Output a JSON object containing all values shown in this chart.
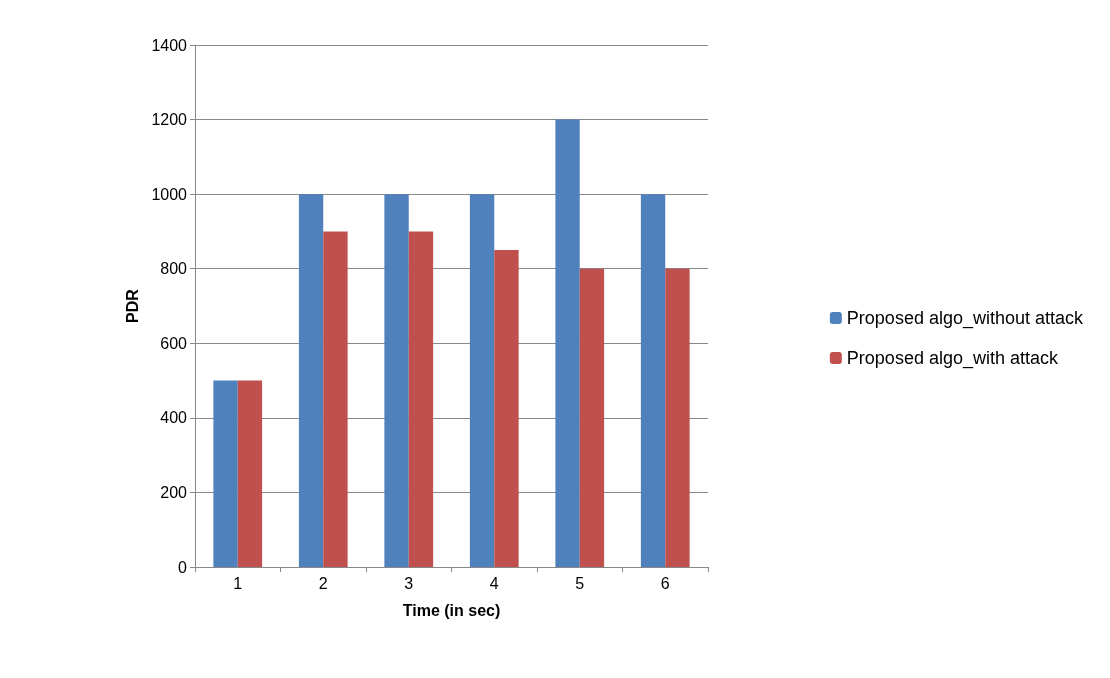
{
  "chart_data": {
    "type": "bar",
    "xlabel": "Time (in sec)",
    "ylabel": "PDR",
    "categories": [
      "1",
      "2",
      "3",
      "4",
      "5",
      "6"
    ],
    "series": [
      {
        "name": "Proposed algo_without attack",
        "color": "#4f81bd",
        "values": [
          500,
          1000,
          1000,
          1000,
          1200,
          1000
        ]
      },
      {
        "name": "Proposed algo_with attack",
        "color": "#c0504d",
        "values": [
          500,
          900,
          900,
          850,
          800,
          800
        ]
      }
    ],
    "ylim": [
      0,
      1400
    ],
    "yticks": [
      0,
      200,
      400,
      600,
      800,
      1000,
      1200,
      1400
    ],
    "grid": "y",
    "legend": "right"
  }
}
